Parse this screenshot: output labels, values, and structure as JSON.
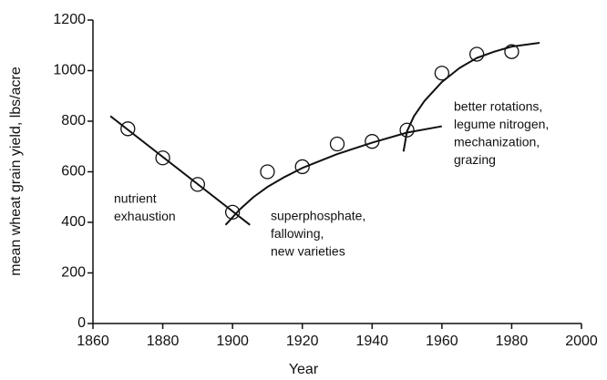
{
  "chart_data": {
    "type": "scatter",
    "x_label": "Year",
    "y_label": "mean wheat grain yield, lbs/acre",
    "xlim": [
      1860,
      2000
    ],
    "xticks": [
      1860,
      1880,
      1900,
      1920,
      1940,
      1960,
      1980,
      2000
    ],
    "ylim": [
      0,
      1200
    ],
    "yticks": [
      0,
      200,
      400,
      600,
      800,
      1000,
      1200
    ],
    "series": [
      {
        "style": "markers",
        "color": "#111111",
        "x": [
          1870,
          1880,
          1890,
          1900,
          1910,
          1920,
          1930,
          1940,
          1950,
          1960,
          1970,
          1980
        ],
        "values": [
          770,
          655,
          550,
          440,
          600,
          620,
          710,
          720,
          765,
          990,
          1065,
          1075
        ]
      },
      {
        "style": "line",
        "color": "#111111",
        "x": [
          1865,
          1905
        ],
        "values": [
          820,
          390
        ]
      },
      {
        "style": "line",
        "color": "#111111",
        "x": [
          1898,
          1902,
          1906,
          1910,
          1915,
          1920,
          1930,
          1940,
          1950,
          1960
        ],
        "values": [
          390,
          450,
          500,
          540,
          580,
          615,
          670,
          715,
          755,
          780
        ]
      },
      {
        "style": "line",
        "color": "#111111",
        "x": [
          1949,
          1950,
          1952,
          1955,
          1960,
          1965,
          1970,
          1975,
          1980,
          1988
        ],
        "values": [
          680,
          760,
          820,
          880,
          955,
          1010,
          1050,
          1075,
          1095,
          1110
        ]
      }
    ],
    "annotations": [
      [
        "nutrient",
        "exhaustion"
      ],
      [
        "superphosphate,",
        "fallowing,",
        "new varieties"
      ],
      [
        "better rotations,",
        "legume nitrogen,",
        "mechanization,",
        "grazing"
      ]
    ]
  }
}
